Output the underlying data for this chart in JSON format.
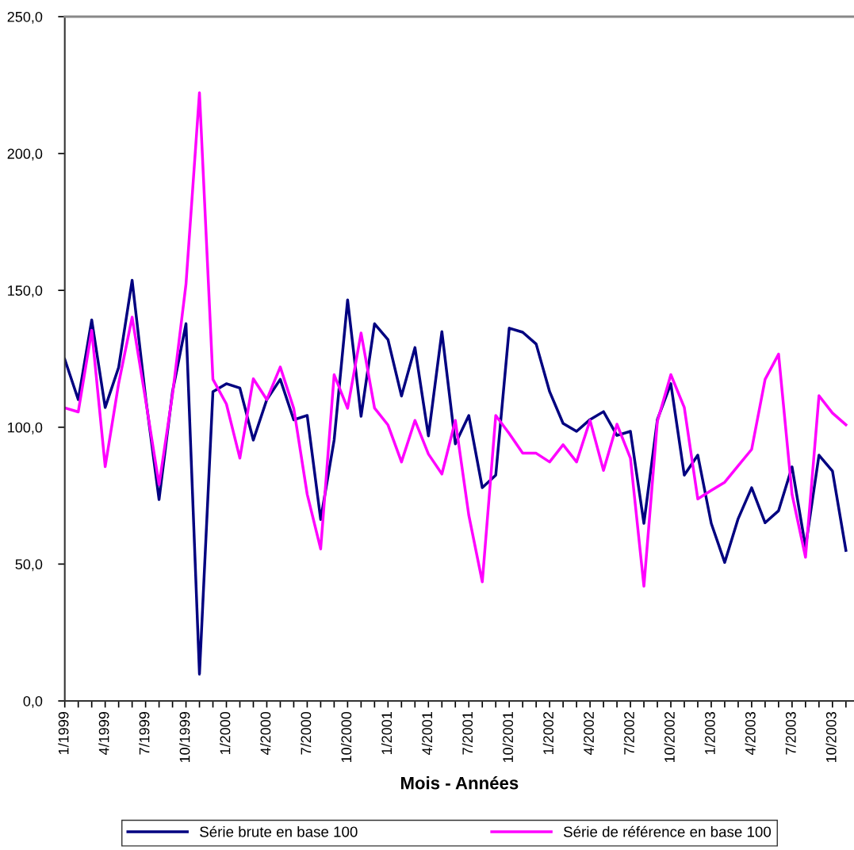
{
  "chart_data": {
    "type": "line",
    "xlabel": "Mois - Années",
    "categories": [
      "1/1999",
      null,
      null,
      "4/1999",
      null,
      null,
      "7/1999",
      null,
      null,
      "10/1999",
      null,
      null,
      "1/2000",
      null,
      null,
      "4/2000",
      null,
      null,
      "7/2000",
      null,
      null,
      "10/2000",
      null,
      null,
      "1/2001",
      null,
      null,
      "4/2001",
      null,
      null,
      "7/2001",
      null,
      null,
      "10/2001",
      null,
      null,
      "1/2002",
      null,
      null,
      "4/2002",
      null,
      null,
      "7/2002",
      null,
      null,
      "10/2002",
      null,
      null,
      "1/2003",
      null,
      null,
      "4/2003",
      null,
      null,
      "7/2003",
      null,
      null,
      "10/2003",
      null
    ],
    "series": [
      {
        "name": "Série brute en base 100",
        "color": "#000080",
        "values": [
          124.8,
          110.1,
          139.2,
          107.2,
          121.9,
          153.7,
          111,
          73.6,
          113,
          137.8,
          9.8,
          113,
          115.9,
          114.3,
          95.3,
          110.1,
          117.5,
          102.7,
          104.3,
          66.3,
          95.3,
          146.5,
          104,
          137.8,
          132,
          111.4,
          129.1,
          96.8,
          134.9,
          93.9,
          104.3,
          77.9,
          82.5,
          136.2,
          134.7,
          130.4,
          113,
          101.4,
          98.5,
          102.8,
          105.7,
          97,
          98.5,
          64.9,
          102.8,
          115.9,
          82.5,
          89.8,
          64.9,
          50.6,
          66.6,
          77.9,
          65.1,
          69.5,
          85.5,
          56.2,
          89.8,
          84,
          55
        ]
      },
      {
        "name": "Série de référence en base 100",
        "color": "#ff00ff",
        "values": [
          107.1,
          105.6,
          135.4,
          85.6,
          116,
          140.2,
          110,
          79,
          112,
          152.3,
          222.2,
          117.5,
          108.5,
          88.7,
          117.7,
          110.1,
          122,
          106.9,
          75.5,
          55.5,
          119.2,
          106.9,
          134.4,
          107,
          100.8,
          87.3,
          102.5,
          90.2,
          82.9,
          102.5,
          67.8,
          43.5,
          104.3,
          97.7,
          90.5,
          90.5,
          87.3,
          93.6,
          87.3,
          102.5,
          84.2,
          101.1,
          88.7,
          41.9,
          102.1,
          119.2,
          107.2,
          73.8,
          76.9,
          79.9,
          85.9,
          91.9,
          117.5,
          126.7,
          75.5,
          52.5,
          111.5,
          105.2,
          100.9
        ]
      }
    ],
    "ylim": [
      0,
      250
    ],
    "yticks": [
      {
        "value": 0,
        "label": "0,0"
      },
      {
        "value": 50,
        "label": "50,0"
      },
      {
        "value": 100,
        "label": "100,0"
      },
      {
        "value": 150,
        "label": "150,0"
      },
      {
        "value": 200,
        "label": "200,0"
      },
      {
        "value": 250,
        "label": "250,0"
      }
    ],
    "grid": false,
    "legend": "bottom",
    "marker": "none",
    "line_style": "solid"
  }
}
